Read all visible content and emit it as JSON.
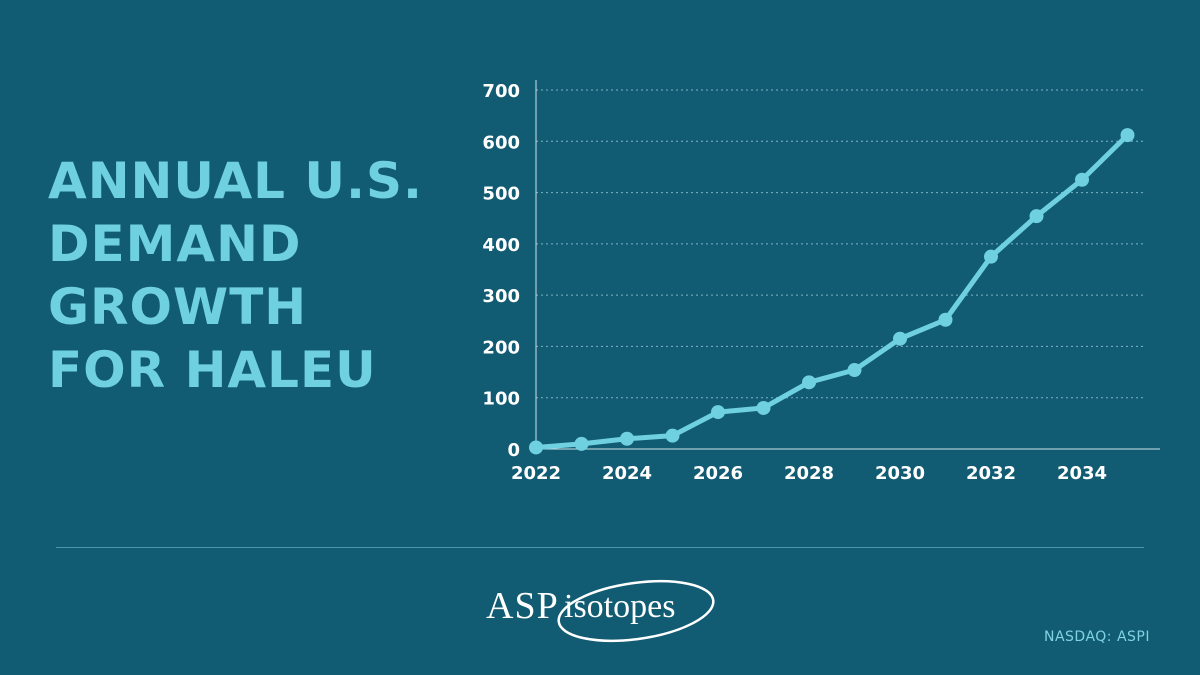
{
  "title_lines": [
    "ANNUAL U.S.",
    "DEMAND",
    "GROWTH",
    "FOR HALEU"
  ],
  "footer": {
    "logo_text_main": "ASP",
    "logo_text_sub": "isotopes",
    "ticker": "NASDAQ: ASPI"
  },
  "colors": {
    "background": "#115b73",
    "accent": "#6fd0e0",
    "axis_text": "#ffffff"
  },
  "chart_data": {
    "type": "line",
    "title": "",
    "xlabel": "",
    "ylabel": "",
    "x": [
      2022,
      2023,
      2024,
      2025,
      2026,
      2027,
      2028,
      2029,
      2030,
      2031,
      2032,
      2033,
      2034,
      2035
    ],
    "series": [
      {
        "values": [
          3,
          10,
          20,
          26,
          72,
          80,
          130,
          154,
          215,
          252,
          375,
          454,
          525,
          612
        ]
      }
    ],
    "xticks": [
      2022,
      2024,
      2026,
      2028,
      2030,
      2032,
      2034
    ],
    "yticks": [
      0,
      100,
      200,
      300,
      400,
      500,
      600,
      700
    ],
    "xlim": [
      2022,
      2035.6
    ],
    "ylim": [
      0,
      730
    ],
    "grid": "horizontal-dotted"
  }
}
